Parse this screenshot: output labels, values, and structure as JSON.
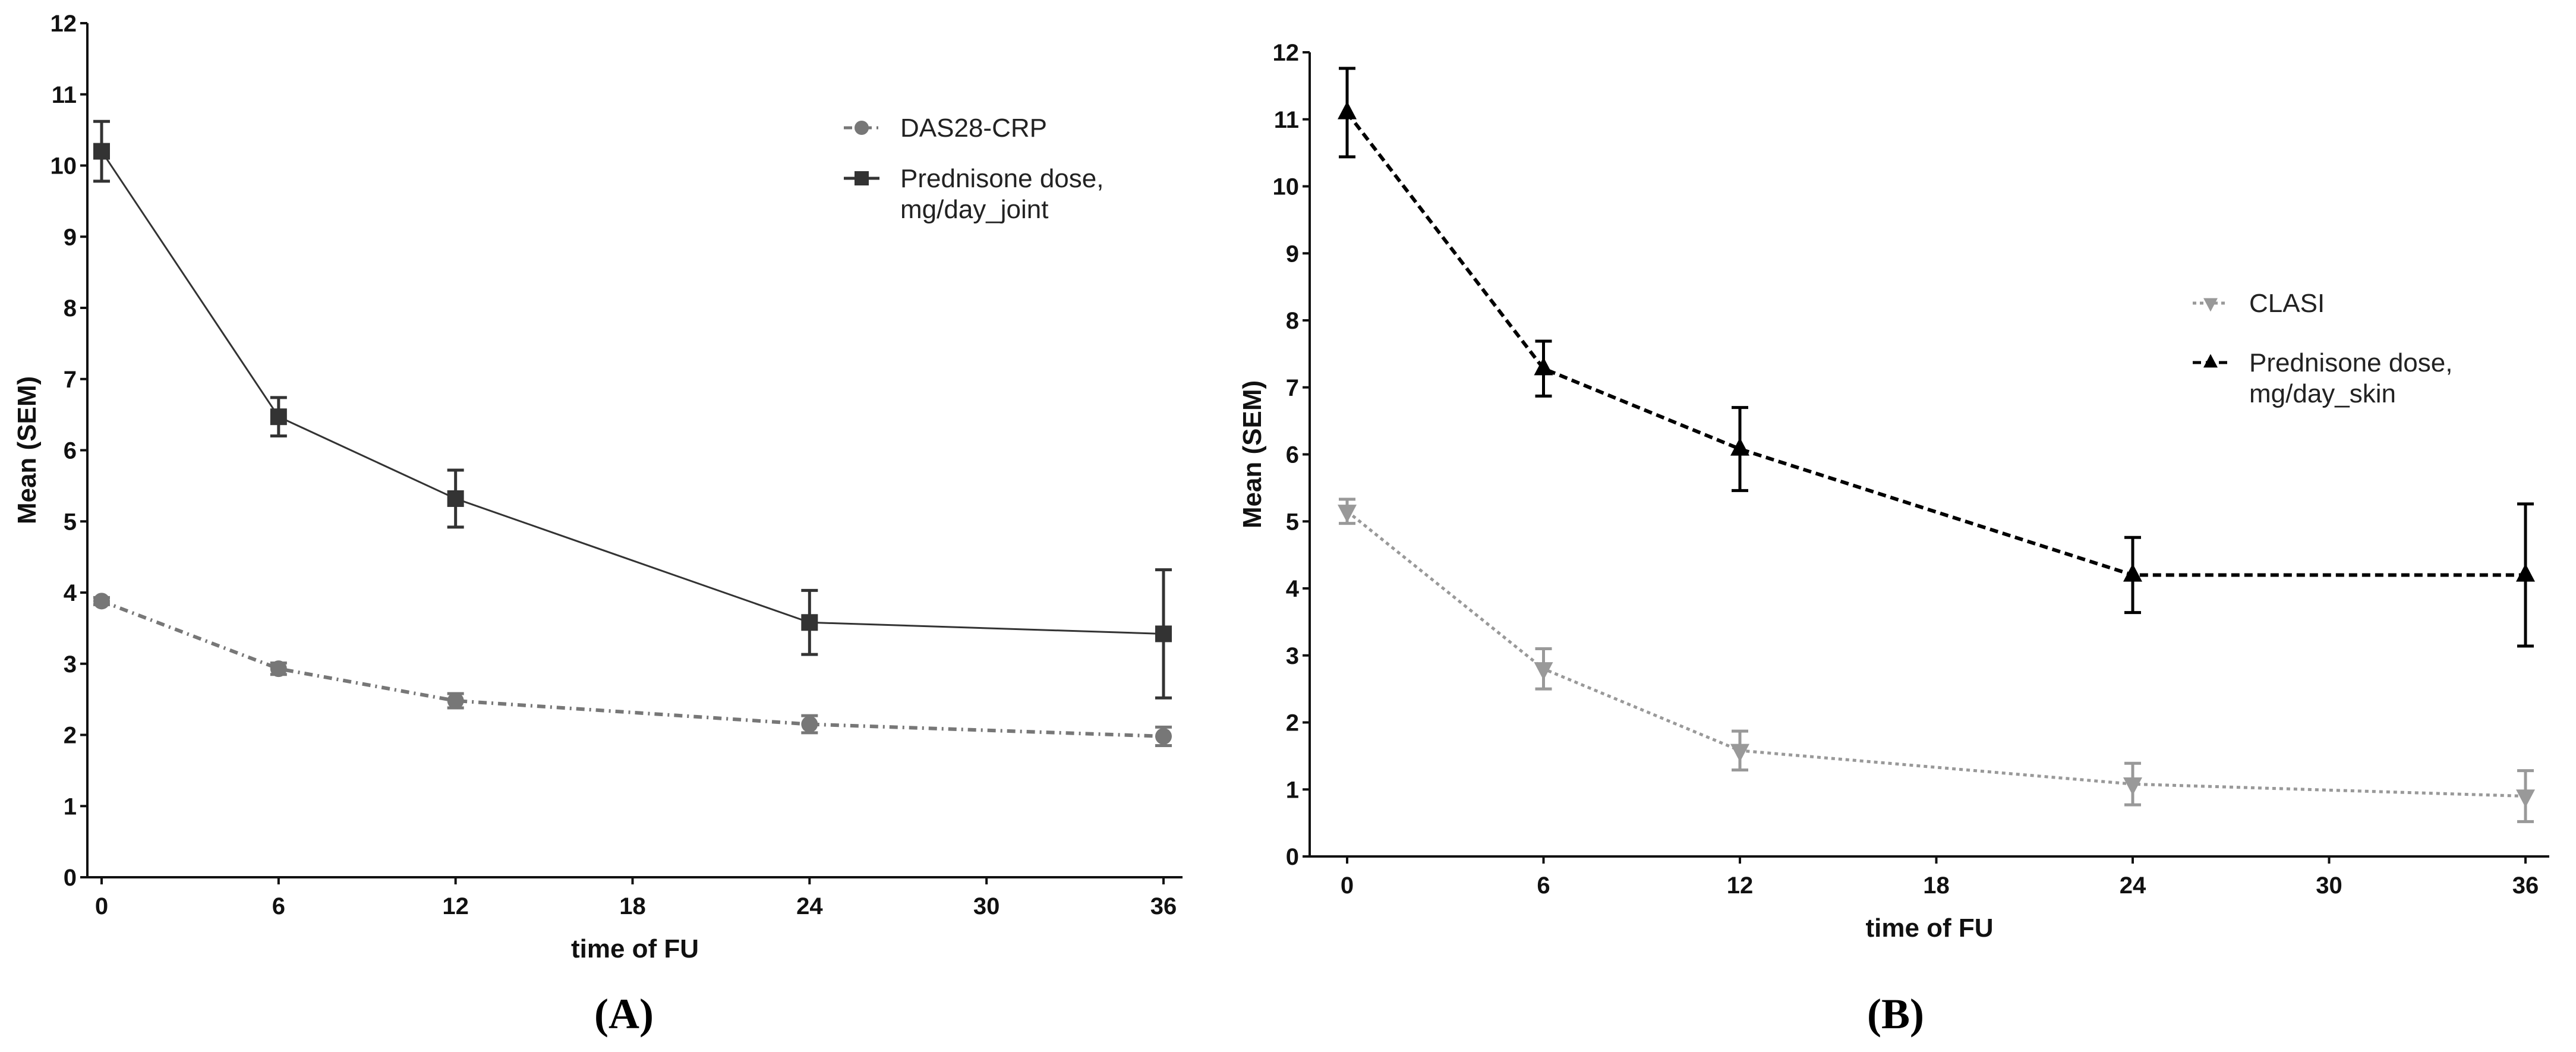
{
  "chart_data": [
    {
      "type": "line",
      "panel_label": "(A)",
      "xlabel": "time of FU",
      "ylabel": "Mean (SEM)",
      "x": [
        0,
        6,
        12,
        24,
        36
      ],
      "xticks": [
        "0",
        "6",
        "12",
        "18",
        "24",
        "30",
        "36"
      ],
      "xlim": [
        0,
        36
      ],
      "ylim": [
        0,
        12
      ],
      "yticks": [
        "0",
        "1",
        "2",
        "3",
        "4",
        "5",
        "6",
        "7",
        "8",
        "9",
        "10",
        "11",
        "12"
      ],
      "legend_position": "top-right",
      "series": [
        {
          "name": "DAS28-CRP",
          "marker": "circle",
          "style": "dashdot",
          "color": "#777777",
          "values": [
            3.88,
            2.93,
            2.48,
            2.15,
            1.98
          ],
          "sem": [
            0.05,
            0.08,
            0.1,
            0.12,
            0.13
          ]
        },
        {
          "name": "Prednisone dose, mg/day_joint",
          "name_lines": [
            "Prednisone dose,",
            "mg/day_joint"
          ],
          "marker": "square",
          "style": "solid",
          "color": "#333333",
          "values": [
            10.2,
            6.47,
            5.32,
            3.58,
            3.42
          ],
          "sem": [
            0.42,
            0.27,
            0.4,
            0.45,
            0.9
          ]
        }
      ]
    },
    {
      "type": "line",
      "panel_label": "(B)",
      "xlabel": "time of FU",
      "ylabel": "Mean (SEM)",
      "x": [
        0,
        6,
        12,
        24,
        36
      ],
      "xticks": [
        "0",
        "6",
        "12",
        "18",
        "24",
        "30",
        "36"
      ],
      "xlim": [
        0,
        36
      ],
      "ylim": [
        0,
        12
      ],
      "yticks": [
        "0",
        "1",
        "2",
        "3",
        "4",
        "5",
        "6",
        "7",
        "8",
        "9",
        "10",
        "11",
        "12"
      ],
      "legend_position": "right",
      "series": [
        {
          "name": "CLASI",
          "marker": "triangle-down",
          "style": "dotted",
          "color": "#999999",
          "values": [
            5.15,
            2.8,
            1.58,
            1.08,
            0.9
          ],
          "sem": [
            0.18,
            0.3,
            0.29,
            0.31,
            0.38
          ]
        },
        {
          "name": "Prednisone dose, mg/day_skin",
          "name_lines": [
            "Prednisone dose,",
            "mg/day_skin"
          ],
          "marker": "triangle-up",
          "style": "dashed",
          "color": "#000000",
          "values": [
            11.1,
            7.28,
            6.08,
            4.2,
            4.2
          ],
          "sem": [
            0.66,
            0.41,
            0.62,
            0.56,
            1.06
          ]
        }
      ]
    }
  ]
}
